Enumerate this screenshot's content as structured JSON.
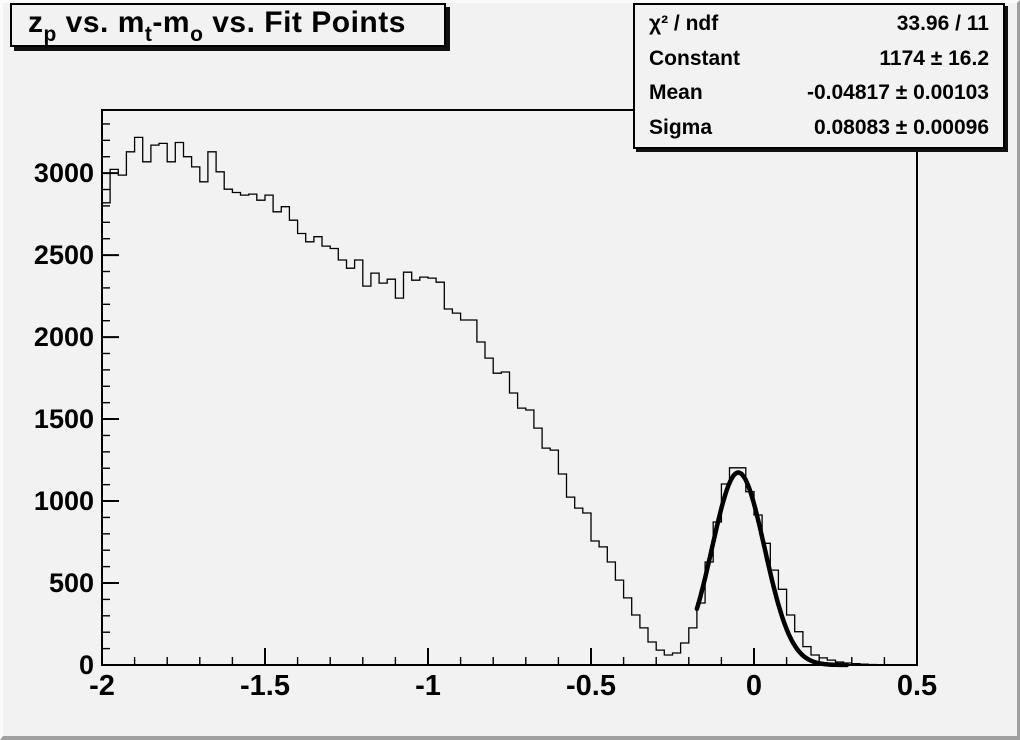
{
  "window": {
    "background": "#f2f2f2",
    "bevel_light": "#fbfbfb",
    "bevel_dark": "#a0a0a0",
    "line_color": "#000000"
  },
  "title": {
    "text": "z_p vs. m_t-m_o vs. Fit Points",
    "parts": {
      "p1": "z",
      "s1": "p",
      "p2": " vs. m",
      "s2": "t",
      "p3": "-m",
      "s3": "o",
      "p4": " vs. Fit Points"
    }
  },
  "stats": {
    "rows": [
      {
        "label": "χ² / ndf",
        "value": "33.96 / 11"
      },
      {
        "label": "Constant",
        "value": "1174 ± 16.2"
      },
      {
        "label": "Mean",
        "value": "-0.04817 ± 0.00103"
      },
      {
        "label": "Sigma",
        "value": "0.08083 ± 0.00096"
      }
    ]
  },
  "chart_data": {
    "type": "histogram",
    "style": "ROOT step-line histogram with thick gaussian fit overlay",
    "title": "z_p vs. m_t-m_o vs. Fit Points",
    "xlabel": "",
    "ylabel": "",
    "xlim": [
      -2,
      0.5
    ],
    "ylim": [
      0,
      3385
    ],
    "grid": false,
    "legend": false,
    "bin_start": -2,
    "bin_width": 0.025,
    "n_bins": 100,
    "values": [
      2819,
      3023,
      2988,
      3130,
      3218,
      3069,
      3171,
      3181,
      3069,
      3187,
      3100,
      3038,
      2947,
      3130,
      3008,
      2902,
      2882,
      2866,
      2872,
      2835,
      2866,
      2764,
      2795,
      2713,
      2632,
      2581,
      2612,
      2555,
      2540,
      2470,
      2420,
      2470,
      2311,
      2390,
      2329,
      2353,
      2238,
      2396,
      2347,
      2366,
      2360,
      2335,
      2171,
      2146,
      2104,
      2104,
      1970,
      1872,
      1780,
      1787,
      1659,
      1567,
      1555,
      1445,
      1323,
      1311,
      1165,
      1024,
      957,
      927,
      756,
      720,
      628,
      518,
      409,
      305,
      226,
      140,
      91,
      61,
      73,
      134,
      226,
      378,
      628,
      872,
      1104,
      1203,
      1203,
      1057,
      915,
      742,
      579,
      462,
      305,
      203,
      112,
      61,
      43,
      30,
      18,
      12,
      8,
      5,
      3,
      2,
      0,
      0,
      0,
      0
    ],
    "fit": {
      "type": "gaussian",
      "constant": 1174,
      "mean": -0.04817,
      "sigma": 0.08083,
      "chi2": 33.96,
      "ndf": 11,
      "range": [
        -0.175,
        0.285
      ],
      "line_width": 4.5,
      "color": "#000000"
    },
    "xticks": [
      {
        "v": -2,
        "label": "-2"
      },
      {
        "v": -1.5,
        "label": "-1.5"
      },
      {
        "v": -1,
        "label": "-1"
      },
      {
        "v": -0.5,
        "label": "-0.5"
      },
      {
        "v": 0,
        "label": "0"
      },
      {
        "v": 0.5,
        "label": "0.5"
      }
    ],
    "yticks": [
      {
        "v": 0,
        "label": "0"
      },
      {
        "v": 500,
        "label": "500"
      },
      {
        "v": 1000,
        "label": "1000"
      },
      {
        "v": 1500,
        "label": "1500"
      },
      {
        "v": 2000,
        "label": "2000"
      },
      {
        "v": 2500,
        "label": "2500"
      },
      {
        "v": 3000,
        "label": "3000"
      }
    ],
    "x_major_step": 0.5,
    "x_minor_step": 0.1,
    "y_major_step": 500,
    "y_minor_step": 100,
    "histogram_color": "#000000"
  }
}
